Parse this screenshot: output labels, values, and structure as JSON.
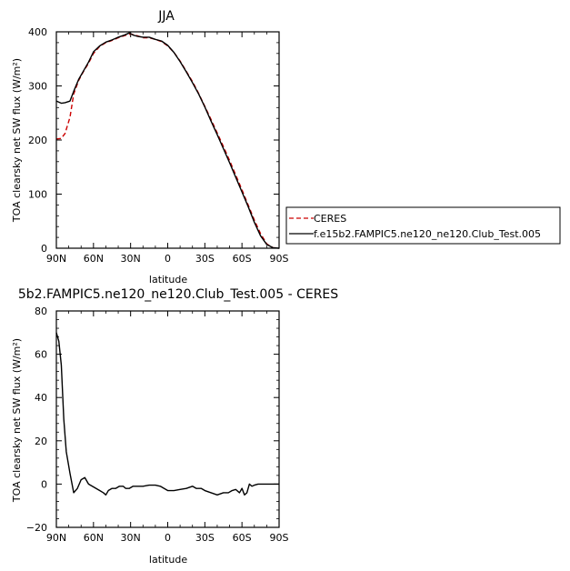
{
  "chart_data": [
    {
      "type": "line",
      "title": "JJA",
      "xlabel": "latitude",
      "ylabel": "TOA clearsky net SW flux (W/m²)",
      "xlim": [
        90,
        -90
      ],
      "ylim": [
        0,
        400
      ],
      "x_ticks": [
        90,
        60,
        30,
        0,
        -30,
        -60,
        -90
      ],
      "x_tick_labels": [
        "90N",
        "60N",
        "30N",
        "0",
        "30S",
        "60S",
        "90S"
      ],
      "y_ticks": [
        0,
        100,
        200,
        300,
        400
      ],
      "y_tick_labels": [
        "0",
        "100",
        "200",
        "300",
        "400"
      ],
      "legend_position": "right",
      "series": [
        {
          "name": "CERES",
          "color": "#cc0000",
          "dash": "dashed",
          "points": [
            [
              90,
              202
            ],
            [
              86,
              203
            ],
            [
              83,
              212
            ],
            [
              79,
              242
            ],
            [
              76,
              285
            ],
            [
              72,
              310
            ],
            [
              68,
              327
            ],
            [
              64,
              342
            ],
            [
              60,
              360
            ],
            [
              55,
              373
            ],
            [
              50,
              380
            ],
            [
              45,
              384
            ],
            [
              40,
              389
            ],
            [
              35,
              393
            ],
            [
              30,
              396
            ],
            [
              25,
              393
            ],
            [
              20,
              389
            ],
            [
              15,
              389
            ],
            [
              10,
              386
            ],
            [
              5,
              382
            ],
            [
              0,
              374
            ],
            [
              -5,
              362
            ],
            [
              -10,
              346
            ],
            [
              -15,
              327
            ],
            [
              -20,
              308
            ],
            [
              -25,
              286
            ],
            [
              -30,
              262
            ],
            [
              -35,
              238
            ],
            [
              -40,
              213
            ],
            [
              -45,
              188
            ],
            [
              -50,
              162
            ],
            [
              -55,
              135
            ],
            [
              -60,
              108
            ],
            [
              -65,
              80
            ],
            [
              -70,
              52
            ],
            [
              -75,
              27
            ],
            [
              -80,
              8
            ],
            [
              -85,
              1
            ],
            [
              -90,
              0
            ]
          ]
        },
        {
          "name": "f.e15b2.FAMPIC5.ne120_ne120.Club_Test.005",
          "color": "#000000",
          "dash": "solid",
          "points": [
            [
              90,
              272
            ],
            [
              86,
              268
            ],
            [
              83,
              269
            ],
            [
              79,
              272
            ],
            [
              76,
              290
            ],
            [
              72,
              312
            ],
            [
              68,
              328
            ],
            [
              64,
              344
            ],
            [
              60,
              363
            ],
            [
              55,
              374
            ],
            [
              50,
              381
            ],
            [
              45,
              385
            ],
            [
              40,
              390
            ],
            [
              35,
              394
            ],
            [
              31,
              398
            ],
            [
              28,
              394
            ],
            [
              25,
              392
            ],
            [
              20,
              390
            ],
            [
              15,
              390
            ],
            [
              10,
              386
            ],
            [
              5,
              383
            ],
            [
              0,
              375
            ],
            [
              -5,
              362
            ],
            [
              -10,
              345
            ],
            [
              -15,
              326
            ],
            [
              -20,
              306
            ],
            [
              -25,
              285
            ],
            [
              -30,
              261
            ],
            [
              -35,
              235
            ],
            [
              -40,
              210
            ],
            [
              -45,
              184
            ],
            [
              -50,
              158
            ],
            [
              -55,
              131
            ],
            [
              -60,
              104
            ],
            [
              -65,
              77
            ],
            [
              -70,
              48
            ],
            [
              -75,
              23
            ],
            [
              -80,
              7
            ],
            [
              -85,
              1
            ],
            [
              -90,
              0
            ]
          ]
        }
      ]
    },
    {
      "type": "line",
      "title": "5b2.FAMPIC5.ne120_ne120.Club_Test.005 - CERES",
      "xlabel": "latitude",
      "ylabel": "TOA clearsky net SW flux (W/m²)",
      "xlim": [
        90,
        -90
      ],
      "ylim": [
        -20,
        80
      ],
      "x_ticks": [
        90,
        60,
        30,
        0,
        -30,
        -60,
        -90
      ],
      "x_tick_labels": [
        "90N",
        "60N",
        "30N",
        "0",
        "30S",
        "60S",
        "90S"
      ],
      "y_ticks": [
        -20,
        0,
        20,
        40,
        60,
        80
      ],
      "y_tick_labels": [
        "−20",
        "0",
        "20",
        "40",
        "60",
        "80"
      ],
      "series": [
        {
          "color": "#000000",
          "dash": "solid",
          "points": [
            [
              90,
              70
            ],
            [
              88,
              66
            ],
            [
              86,
              55
            ],
            [
              84,
              30
            ],
            [
              82,
              15
            ],
            [
              79,
              5
            ],
            [
              76,
              -4
            ],
            [
              73,
              -2
            ],
            [
              70,
              2
            ],
            [
              67,
              3
            ],
            [
              64,
              0
            ],
            [
              61,
              -1
            ],
            [
              58,
              -2
            ],
            [
              55,
              -3
            ],
            [
              52,
              -4
            ],
            [
              50,
              -5
            ],
            [
              48,
              -3
            ],
            [
              45,
              -2
            ],
            [
              42,
              -2
            ],
            [
              39,
              -1
            ],
            [
              36,
              -1
            ],
            [
              34,
              -2
            ],
            [
              31,
              -2
            ],
            [
              28,
              -1
            ],
            [
              25,
              -1
            ],
            [
              20,
              -1
            ],
            [
              15,
              -0.5
            ],
            [
              10,
              -0.5
            ],
            [
              6,
              -1
            ],
            [
              3,
              -2
            ],
            [
              0,
              -3
            ],
            [
              -5,
              -3
            ],
            [
              -10,
              -2.5
            ],
            [
              -15,
              -2
            ],
            [
              -20,
              -1
            ],
            [
              -23,
              -2
            ],
            [
              -27,
              -2
            ],
            [
              -30,
              -3
            ],
            [
              -35,
              -4
            ],
            [
              -40,
              -5
            ],
            [
              -45,
              -4
            ],
            [
              -49,
              -4
            ],
            [
              -52,
              -3
            ],
            [
              -55,
              -2.5
            ],
            [
              -58,
              -4
            ],
            [
              -60,
              -2
            ],
            [
              -62,
              -5
            ],
            [
              -64,
              -4
            ],
            [
              -66,
              0
            ],
            [
              -68,
              -1
            ],
            [
              -70,
              -0.5
            ],
            [
              -73,
              0
            ],
            [
              -76,
              0
            ],
            [
              -80,
              0
            ],
            [
              -85,
              0
            ],
            [
              -90,
              0
            ]
          ]
        }
      ]
    }
  ]
}
